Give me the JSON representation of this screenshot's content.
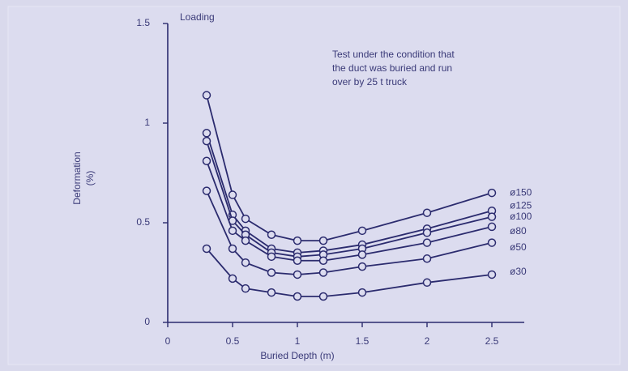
{
  "chart_data": {
    "type": "line",
    "axis_top_label": "Loading",
    "annotation": [
      "Test under the condition that",
      "the duct was buried and run",
      "over by 25 t truck"
    ],
    "xlabel": "Buried Depth (m)",
    "ylabel": [
      "Deformation",
      "(%)"
    ],
    "x": [
      0.3,
      0.5,
      0.6,
      0.8,
      1.0,
      1.2,
      1.5,
      2.0,
      2.5
    ],
    "series": [
      {
        "name": "ø150",
        "color": "#2b2b6e",
        "values": [
          1.14,
          0.64,
          0.52,
          0.44,
          0.41,
          0.41,
          0.46,
          0.55,
          0.65
        ]
      },
      {
        "name": "ø125",
        "color": "#2b2b6e",
        "values": [
          0.95,
          0.54,
          0.46,
          0.37,
          0.35,
          0.36,
          0.39,
          0.47,
          0.56
        ]
      },
      {
        "name": "ø100",
        "color": "#2b2b6e",
        "values": [
          0.91,
          0.51,
          0.44,
          0.35,
          0.33,
          0.34,
          0.37,
          0.45,
          0.53
        ]
      },
      {
        "name": "ø80",
        "color": "#2b2b6e",
        "values": [
          0.81,
          0.46,
          0.41,
          0.33,
          0.31,
          0.31,
          0.34,
          0.4,
          0.48
        ]
      },
      {
        "name": "ø50",
        "color": "#2b2b6e",
        "values": [
          0.66,
          0.37,
          0.3,
          0.25,
          0.24,
          0.25,
          0.28,
          0.32,
          0.4
        ]
      },
      {
        "name": "ø30",
        "color": "#2b2b6e",
        "values": [
          0.37,
          0.22,
          0.17,
          0.15,
          0.13,
          0.13,
          0.15,
          0.2,
          0.24
        ]
      }
    ],
    "xlim": [
      0,
      2.75
    ],
    "ylim": [
      0,
      1.5
    ],
    "xticks": [
      0,
      0.5,
      1,
      1.5,
      2,
      2.5
    ],
    "yticks": [
      0,
      0.5,
      1,
      1.5
    ],
    "grid": false
  }
}
